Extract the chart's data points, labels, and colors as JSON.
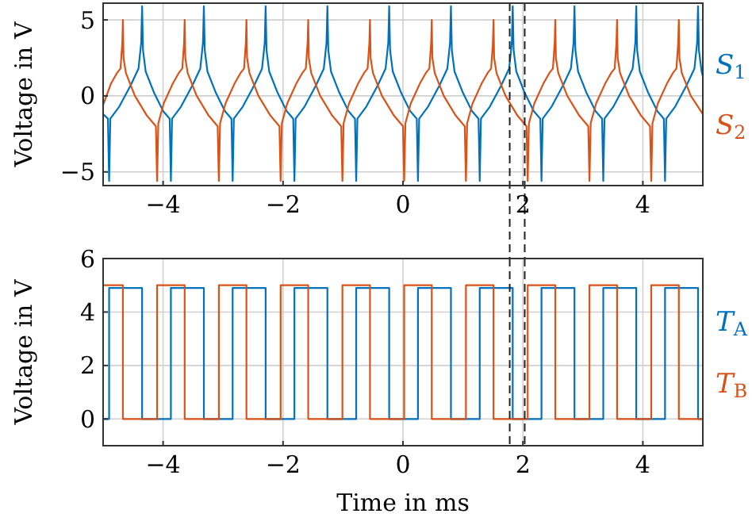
{
  "chart_data": [
    {
      "type": "line",
      "ylabel": "Voltage in V",
      "xlim": [
        -5,
        5
      ],
      "ylim": [
        -5.9,
        6.1
      ],
      "xticks": [
        -4,
        -2,
        0,
        2,
        4
      ],
      "yticks": [
        -5,
        0,
        5
      ],
      "grid": true,
      "legend": "right",
      "line_style": "solid",
      "ref_lines": [
        {
          "axis": "x",
          "value": 1.78,
          "color": "#222222",
          "line_style": "dashed"
        },
        {
          "axis": "x",
          "value": 2.03,
          "color": "#222222",
          "line_style": "dashed"
        }
      ],
      "series": [
        {
          "name": "S$_{1}$",
          "color": "#0072bd",
          "x": [
            -5,
            -4.92,
            -4.9,
            -4.88,
            -4.73,
            -4.54,
            -4.41,
            -4.365,
            -4.35,
            -4.335,
            -4.29,
            -4.15,
            -4.0,
            -3.89,
            -3.87,
            -3.85,
            -3.7,
            -3.51,
            -3.38,
            -3.335,
            -3.32,
            -3.305,
            -3.26,
            -3.12,
            -2.97,
            -2.86,
            -2.84,
            -2.82,
            -2.67,
            -2.48,
            -2.35,
            -2.305,
            -2.29,
            -2.275,
            -2.23,
            -2.09,
            -1.94,
            -1.83,
            -1.81,
            -1.79,
            -1.64,
            -1.45,
            -1.32,
            -1.275,
            -1.26,
            -1.245,
            -1.2,
            -1.06,
            -0.91,
            -0.8,
            -0.78,
            -0.76,
            -0.61,
            -0.42,
            -0.29,
            -0.245,
            -0.23,
            -0.215,
            -0.17,
            -0.03,
            0.12,
            0.23,
            0.25,
            0.27,
            0.42,
            0.61,
            0.74,
            0.785,
            0.8,
            0.815,
            0.86,
            1.0,
            1.15,
            1.26,
            1.28,
            1.3,
            1.45,
            1.64,
            1.77,
            1.815,
            1.83,
            1.845,
            1.89,
            2.03,
            2.18,
            2.29,
            2.31,
            2.33,
            2.48,
            2.67,
            2.8,
            2.845,
            2.86,
            2.875,
            2.92,
            3.06,
            3.21,
            3.32,
            3.34,
            3.36,
            3.51,
            3.7,
            3.83,
            3.875,
            3.89,
            3.905,
            3.95,
            4.09,
            4.24,
            4.35,
            4.37,
            4.39,
            4.54,
            4.73,
            4.86,
            4.905,
            4.92,
            4.935,
            4.98,
            5.0
          ],
          "values": [
            -1.2,
            -1.5,
            -5.6,
            -1.5,
            -0.7,
            0.7,
            1.8,
            3.5,
            5.9,
            3.0,
            1.6,
            0.2,
            -1.0,
            -1.5,
            -5.6,
            -1.5,
            -0.7,
            0.7,
            1.8,
            3.5,
            5.9,
            3.0,
            1.6,
            0.2,
            -1.0,
            -1.5,
            -5.6,
            -1.5,
            -0.7,
            0.7,
            1.8,
            3.5,
            5.9,
            3.0,
            1.6,
            0.2,
            -1.0,
            -1.5,
            -5.6,
            -1.5,
            -0.7,
            0.7,
            1.8,
            3.5,
            5.9,
            3.0,
            1.6,
            0.2,
            -1.0,
            -1.5,
            -5.6,
            -1.5,
            -0.7,
            0.7,
            1.8,
            3.5,
            5.9,
            3.0,
            1.6,
            0.2,
            -1.0,
            -1.5,
            -5.6,
            -1.5,
            -0.7,
            0.7,
            1.8,
            3.5,
            5.9,
            3.0,
            1.6,
            0.2,
            -1.0,
            -1.5,
            -5.6,
            -1.5,
            -0.7,
            0.7,
            1.8,
            3.5,
            5.9,
            3.0,
            1.6,
            0.2,
            -1.0,
            -1.5,
            -5.6,
            -1.5,
            -0.7,
            0.7,
            1.8,
            3.5,
            5.9,
            3.0,
            1.6,
            0.2,
            -1.0,
            -1.5,
            -5.6,
            -1.5,
            -0.7,
            0.7,
            1.8,
            3.5,
            5.9,
            3.0,
            1.6,
            0.2,
            -1.0,
            -1.5,
            -5.6,
            -1.5,
            -0.7,
            0.7,
            1.8,
            3.5,
            5.9,
            3.0,
            1.6,
            1.3
          ]
        },
        {
          "name": "S$_{2}$",
          "color": "#d95319",
          "x": [
            -5.0,
            -4.87,
            -4.77,
            -4.71,
            -4.68,
            -4.67,
            -4.66,
            -4.62,
            -4.47,
            -4.27,
            -4.12,
            -4.1,
            -4.08,
            -3.99,
            -3.84,
            -3.74,
            -3.68,
            -3.65,
            -3.64,
            -3.63,
            -3.59,
            -3.44,
            -3.24,
            -3.09,
            -3.07,
            -3.05,
            -2.96,
            -2.81,
            -2.71,
            -2.65,
            -2.62,
            -2.61,
            -2.6,
            -2.56,
            -2.41,
            -2.21,
            -2.06,
            -2.04,
            -2.02,
            -1.93,
            -1.78,
            -1.68,
            -1.62,
            -1.59,
            -1.58,
            -1.57,
            -1.53,
            -1.38,
            -1.18,
            -1.03,
            -1.01,
            -0.99,
            -0.9,
            -0.75,
            -0.65,
            -0.59,
            -0.56,
            -0.55,
            -0.54,
            -0.5,
            -0.35,
            -0.15,
            0.0,
            0.02,
            0.04,
            0.13,
            0.28,
            0.38,
            0.44,
            0.47,
            0.48,
            0.49,
            0.53,
            0.68,
            0.88,
            1.03,
            1.05,
            1.07,
            1.16,
            1.31,
            1.41,
            1.47,
            1.5,
            1.51,
            1.52,
            1.56,
            1.71,
            1.91,
            2.06,
            2.08,
            2.1,
            2.19,
            2.34,
            2.44,
            2.5,
            2.53,
            2.54,
            2.55,
            2.59,
            2.74,
            2.94,
            3.09,
            3.11,
            3.13,
            3.22,
            3.37,
            3.47,
            3.53,
            3.56,
            3.57,
            3.58,
            3.62,
            3.77,
            3.97,
            4.12,
            4.14,
            4.16,
            4.25,
            4.4,
            4.5,
            4.56,
            4.59,
            4.6,
            4.61,
            4.65,
            4.8,
            5.0
          ],
          "values": [
            -0.6,
            0.8,
            1.5,
            1.8,
            3.5,
            5.0,
            2.5,
            1.5,
            0.0,
            -1.3,
            -2.0,
            -5.6,
            -1.8,
            -0.5,
            0.8,
            1.5,
            1.8,
            3.5,
            5.0,
            2.5,
            1.5,
            0.0,
            -1.3,
            -2.0,
            -5.6,
            -1.8,
            -0.5,
            0.8,
            1.5,
            1.8,
            3.5,
            5.0,
            2.5,
            1.5,
            0.0,
            -1.3,
            -2.0,
            -5.6,
            -1.8,
            -0.5,
            0.8,
            1.5,
            1.8,
            3.5,
            5.0,
            2.5,
            1.5,
            0.0,
            -1.3,
            -2.0,
            -5.6,
            -1.8,
            -0.5,
            0.8,
            1.5,
            1.8,
            3.5,
            5.0,
            2.5,
            1.5,
            0.0,
            -1.3,
            -2.0,
            -5.6,
            -1.8,
            -0.5,
            0.8,
            1.5,
            1.8,
            3.5,
            5.0,
            2.5,
            1.5,
            0.0,
            -1.3,
            -2.0,
            -5.6,
            -1.8,
            -0.5,
            0.8,
            1.5,
            1.8,
            3.5,
            5.0,
            2.5,
            1.5,
            0.0,
            -1.3,
            -2.0,
            -5.6,
            -1.8,
            -0.5,
            0.8,
            1.5,
            1.8,
            3.5,
            5.0,
            2.5,
            1.5,
            0.0,
            -1.3,
            -2.0,
            -5.6,
            -1.8,
            -0.5,
            0.8,
            1.5,
            1.8,
            3.5,
            5.0,
            2.5,
            1.5,
            0.0,
            -1.3,
            -2.0,
            -5.6,
            -1.8,
            -0.5,
            0.8,
            1.5,
            1.8,
            3.5,
            5.0,
            2.5,
            1.5,
            0.0,
            -1.2
          ]
        }
      ]
    },
    {
      "type": "line",
      "xlabel": "Time in ms",
      "ylabel": "Voltage in V",
      "xlim": [
        -5,
        5
      ],
      "ylim": [
        -1,
        6
      ],
      "xticks": [
        -4,
        -2,
        0,
        2,
        4
      ],
      "yticks": [
        0,
        2,
        4,
        6
      ],
      "grid": true,
      "legend": "right",
      "line_style": "solid",
      "ref_lines": [
        {
          "axis": "x",
          "value": 1.78,
          "color": "#222222",
          "line_style": "dashed"
        },
        {
          "axis": "x",
          "value": 2.03,
          "color": "#222222",
          "line_style": "dashed"
        }
      ],
      "series": [
        {
          "name": "T$_{A}$",
          "color": "#0072bd",
          "x": [
            -5,
            -4.9,
            -4.9,
            -4.35,
            -4.35,
            -3.87,
            -3.87,
            -3.32,
            -3.32,
            -2.84,
            -2.84,
            -2.29,
            -2.29,
            -1.81,
            -1.81,
            -1.26,
            -1.26,
            -0.78,
            -0.78,
            -0.23,
            -0.23,
            0.25,
            0.25,
            0.8,
            0.8,
            1.28,
            1.28,
            1.83,
            1.83,
            2.31,
            2.31,
            2.86,
            2.86,
            3.34,
            3.34,
            3.89,
            3.89,
            4.37,
            4.37,
            4.92,
            4.92,
            5
          ],
          "values": [
            0,
            0,
            4.9,
            4.9,
            0,
            0,
            4.9,
            4.9,
            0,
            0,
            4.9,
            4.9,
            0,
            0,
            4.9,
            4.9,
            0,
            0,
            4.9,
            4.9,
            0,
            0,
            4.9,
            4.9,
            0,
            0,
            4.9,
            4.9,
            0,
            0,
            4.9,
            4.9,
            0,
            0,
            4.9,
            4.9,
            0,
            0,
            4.9,
            4.9,
            0,
            0
          ]
        },
        {
          "name": "T$_{B}$",
          "color": "#d95319",
          "x": [
            -5,
            -4.67,
            -4.67,
            -4.1,
            -4.1,
            -3.64,
            -3.64,
            -3.07,
            -3.07,
            -2.61,
            -2.61,
            -2.04,
            -2.04,
            -1.58,
            -1.58,
            -1.01,
            -1.01,
            -0.55,
            -0.55,
            0.02,
            0.02,
            0.48,
            0.48,
            1.05,
            1.05,
            1.51,
            1.51,
            2.08,
            2.08,
            2.54,
            2.54,
            3.11,
            3.11,
            3.57,
            3.57,
            4.14,
            4.14,
            4.6,
            4.6,
            5
          ],
          "values": [
            5,
            5,
            0,
            0,
            5,
            5,
            0,
            0,
            5,
            5,
            0,
            0,
            5,
            5,
            0,
            0,
            5,
            5,
            0,
            0,
            5,
            5,
            0,
            0,
            5,
            5,
            0,
            0,
            5,
            5,
            0,
            0,
            5,
            5,
            0,
            0,
            5,
            5,
            0,
            0
          ]
        }
      ]
    }
  ]
}
